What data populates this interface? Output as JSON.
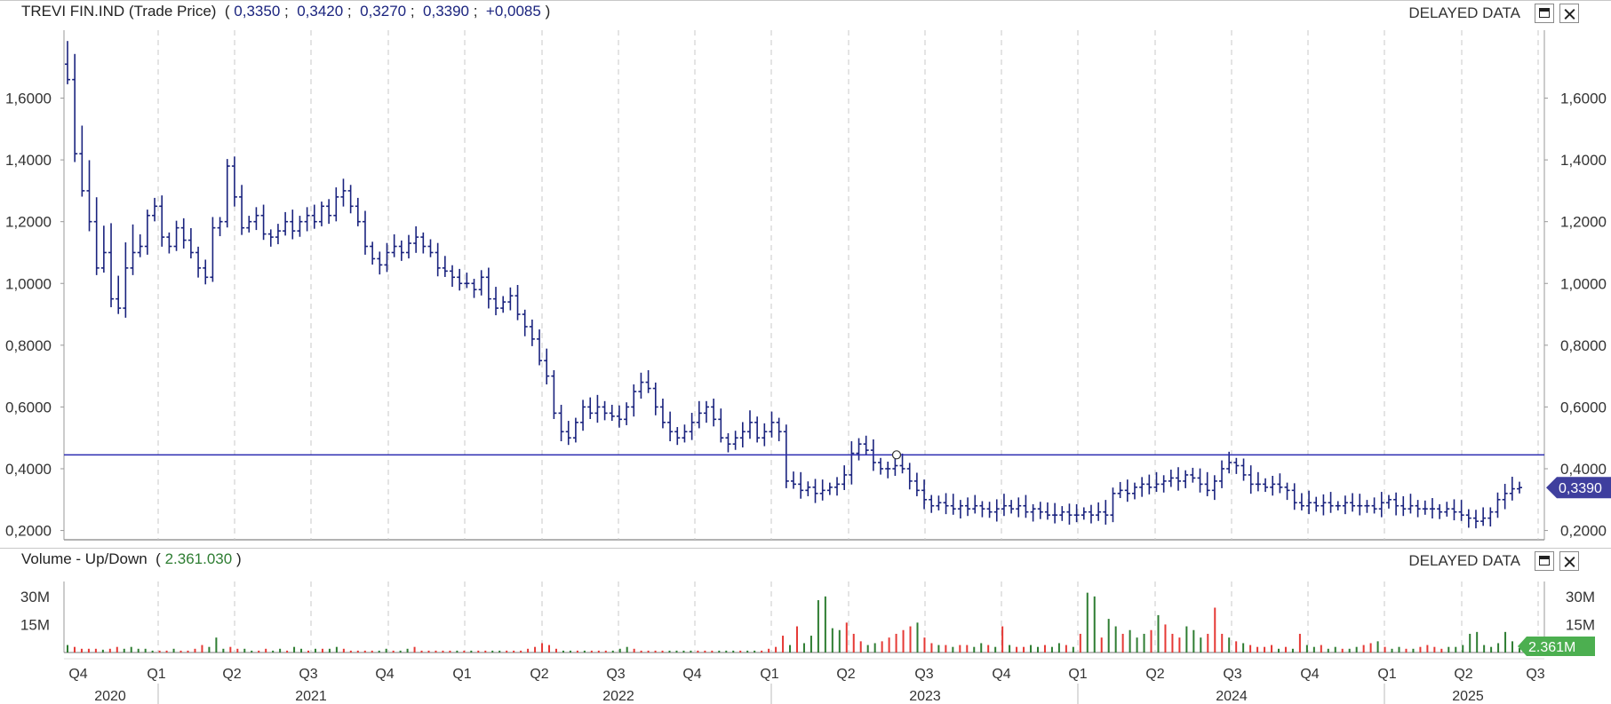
{
  "price_panel": {
    "instrument": "TREVI FIN.IND (Trade Price)",
    "open": "0,3350",
    "high": "0,3420",
    "low": "0,3270",
    "close": "0,3390",
    "change": "+0,0085",
    "delayed_label": "DELAYED DATA",
    "last_price_badge": "0,3390",
    "colors": {
      "series": "#1a237e",
      "badge": "#3f3f9e",
      "hline": "#2b2bb0"
    }
  },
  "volume_panel": {
    "title": "Volume - Up/Down",
    "value": "2.361.030",
    "delayed_label": "DELAYED DATA",
    "last_volume_badge": "2.361M",
    "colors": {
      "up": "#2e7d32",
      "down": "#e53935",
      "badge": "#4caf50"
    }
  },
  "x_axis": {
    "quarters": [
      "Q4",
      "Q1",
      "Q2",
      "Q3",
      "Q4",
      "Q1",
      "Q2",
      "Q3",
      "Q4",
      "Q1",
      "Q2",
      "Q3",
      "Q4",
      "Q1",
      "Q2",
      "Q3",
      "Q4",
      "Q1",
      "Q2",
      "Q3"
    ],
    "years": [
      "2020",
      "2021",
      "2022",
      "2023",
      "2024",
      "2025"
    ]
  },
  "chart_data": [
    {
      "type": "ohlc",
      "title": "TREVI FIN.IND (Trade Price)",
      "x_range": [
        "2020-10",
        "2025-07"
      ],
      "ylim": [
        0.17,
        1.82
      ],
      "y_ticks": [
        "0,2000",
        "0,4000",
        "0,6000",
        "0,8000",
        "1,0000",
        "1,2000",
        "1,4000",
        "1,6000"
      ],
      "horizontal_line": 0.445,
      "grid": "vertical dashed at quarter boundaries",
      "series_weekly_close": [
        1.66,
        1.42,
        1.3,
        1.2,
        1.05,
        1.1,
        0.95,
        0.92,
        1.05,
        1.1,
        1.12,
        1.22,
        1.25,
        1.15,
        1.12,
        1.18,
        1.14,
        1.1,
        1.05,
        1.02,
        1.18,
        1.2,
        1.38,
        1.28,
        1.18,
        1.2,
        1.22,
        1.16,
        1.15,
        1.17,
        1.2,
        1.17,
        1.2,
        1.22,
        1.2,
        1.25,
        1.22,
        1.28,
        1.3,
        1.25,
        1.2,
        1.12,
        1.08,
        1.06,
        1.1,
        1.12,
        1.1,
        1.13,
        1.15,
        1.12,
        1.1,
        1.05,
        1.04,
        1.02,
        1.0,
        1.0,
        0.98,
        1.02,
        0.95,
        0.92,
        0.94,
        0.96,
        0.9,
        0.86,
        0.82,
        0.75,
        0.7,
        0.58,
        0.52,
        0.5,
        0.55,
        0.6,
        0.58,
        0.6,
        0.58,
        0.57,
        0.56,
        0.6,
        0.65,
        0.68,
        0.66,
        0.6,
        0.55,
        0.52,
        0.5,
        0.52,
        0.55,
        0.58,
        0.6,
        0.56,
        0.5,
        0.48,
        0.5,
        0.52,
        0.55,
        0.5,
        0.52,
        0.55,
        0.52,
        0.36,
        0.35,
        0.33,
        0.34,
        0.32,
        0.33,
        0.34,
        0.35,
        0.38,
        0.45,
        0.48,
        0.46,
        0.42,
        0.4,
        0.4,
        0.41,
        0.4,
        0.36,
        0.33,
        0.3,
        0.28,
        0.29,
        0.28,
        0.27,
        0.28,
        0.27,
        0.28,
        0.27,
        0.26,
        0.27,
        0.28,
        0.27,
        0.28,
        0.26,
        0.27,
        0.26,
        0.25,
        0.25,
        0.26,
        0.25,
        0.25,
        0.26,
        0.25,
        0.26,
        0.25,
        0.32,
        0.33,
        0.32,
        0.34,
        0.35,
        0.34,
        0.35,
        0.36,
        0.37,
        0.36,
        0.38,
        0.37,
        0.35,
        0.33,
        0.36,
        0.4,
        0.42,
        0.41,
        0.38,
        0.35,
        0.35,
        0.34,
        0.35,
        0.34,
        0.33,
        0.29,
        0.28,
        0.29,
        0.28,
        0.29,
        0.28,
        0.28,
        0.29,
        0.28,
        0.28,
        0.28,
        0.27,
        0.29,
        0.3,
        0.28,
        0.27,
        0.28,
        0.27,
        0.27,
        0.27,
        0.26,
        0.27,
        0.26,
        0.25,
        0.24,
        0.23,
        0.24,
        0.26,
        0.3,
        0.32,
        0.335,
        0.339
      ],
      "last_close": 0.339
    },
    {
      "type": "bar",
      "title": "Volume - Up/Down",
      "ylim": [
        0,
        38000000
      ],
      "y_ticks": [
        "15M",
        "30M"
      ],
      "series_weekly_volume_millions": [
        4,
        3,
        2,
        2,
        2,
        1.5,
        2,
        3,
        2,
        3,
        2,
        2,
        1,
        1,
        1,
        2,
        1,
        1,
        2,
        4,
        3,
        8,
        2,
        3,
        2,
        2,
        1,
        1,
        2,
        1,
        2,
        1,
        3,
        2,
        1,
        2,
        2,
        2,
        3,
        2,
        1,
        1,
        1,
        1,
        1,
        2,
        1,
        1,
        2,
        3,
        1,
        1,
        1,
        1,
        1,
        1,
        1,
        1,
        1,
        1,
        1,
        1,
        1,
        1,
        1,
        2,
        3,
        5,
        4,
        2,
        1,
        1,
        1,
        1,
        1,
        1,
        1,
        1,
        2,
        3,
        2,
        1,
        1,
        1,
        1,
        1,
        1,
        1,
        1,
        1,
        1,
        1,
        1,
        1,
        1,
        1,
        1,
        1,
        1,
        2,
        3,
        9,
        4,
        14,
        5,
        9,
        28,
        30,
        13,
        12,
        16,
        10,
        6,
        4,
        5,
        6,
        8,
        10,
        12,
        14,
        16,
        8,
        5,
        4,
        4,
        3,
        4,
        4,
        3,
        5,
        4,
        3,
        14,
        4,
        3,
        3,
        4,
        3,
        4,
        3,
        5,
        4,
        3,
        10,
        32,
        30,
        8,
        18,
        14,
        10,
        12,
        8,
        10,
        12,
        20,
        15,
        10,
        8,
        14,
        12,
        8,
        10,
        24,
        10,
        8,
        6,
        5,
        4,
        3,
        3,
        4,
        2,
        3,
        2,
        10,
        4,
        3,
        4,
        2,
        3,
        2,
        2,
        3,
        4,
        5,
        6,
        3,
        2,
        3,
        2,
        2,
        3,
        4,
        3,
        2,
        3,
        3,
        4,
        10,
        11,
        4,
        3,
        5,
        11,
        6,
        2.36
      ],
      "last_volume": "2.361M"
    }
  ]
}
